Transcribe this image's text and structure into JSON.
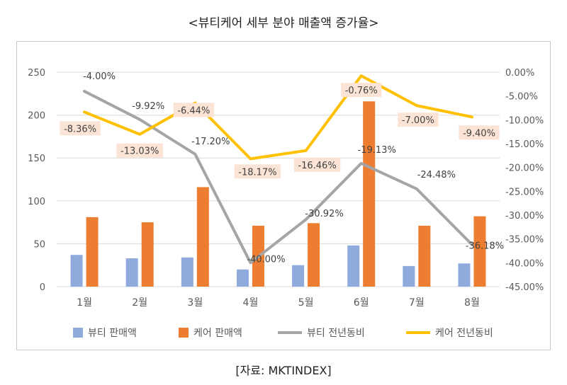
{
  "title": "<뷰티케어 세부 분야 매출액 증가율>",
  "source": "[자료: MKTINDEX]",
  "chart_data": {
    "type": "bar",
    "categories": [
      "1월",
      "2월",
      "3월",
      "4월",
      "5월",
      "6월",
      "7월",
      "8월"
    ],
    "y_left": {
      "min": 0,
      "max": 250,
      "ticks": [
        "0",
        "50",
        "100",
        "150",
        "200",
        "250"
      ]
    },
    "y_right": {
      "min": -45,
      "max": 0,
      "ticks": [
        "0.00%",
        "-5.00%",
        "-10.00%",
        "-15.00%",
        "-20.00%",
        "-25.00%",
        "-30.00%",
        "-35.00%",
        "-40.00%",
        "-45.00%"
      ]
    },
    "grid": true,
    "legend_position": "bottom",
    "series": [
      {
        "name": "뷰티 판매액",
        "type": "bar",
        "axis": "left",
        "color": "#8faadc",
        "values": [
          37,
          33,
          34,
          20,
          25,
          48,
          24,
          27
        ]
      },
      {
        "name": "케어 판매액",
        "type": "bar",
        "axis": "left",
        "color": "#ed7d31",
        "values": [
          81,
          75,
          116,
          71,
          74,
          216,
          71,
          82
        ]
      },
      {
        "name": "뷰티 전년동비",
        "type": "line",
        "axis": "right",
        "color": "#a5a5a5",
        "values": [
          -4.0,
          -9.92,
          -17.2,
          -40.0,
          -30.92,
          -19.13,
          -24.48,
          -36.18
        ],
        "labels": [
          "-4.00%",
          "-9.92%",
          "-17.20%",
          "-40.00%",
          "-30.92%",
          "-19.13%",
          "-24.48%",
          "-36.18%"
        ]
      },
      {
        "name": "케어 전년동비",
        "type": "line",
        "axis": "right",
        "color": "#ffc000",
        "values": [
          -8.36,
          -13.03,
          -6.44,
          -18.17,
          -16.46,
          -0.76,
          -7.0,
          -9.4
        ],
        "labels": [
          "-8.36%",
          "-13.03%",
          "-6.44%",
          "-18.17%",
          "-16.46%",
          "-0.76%",
          "-7.00%",
          "-9.40%"
        ]
      }
    ]
  }
}
